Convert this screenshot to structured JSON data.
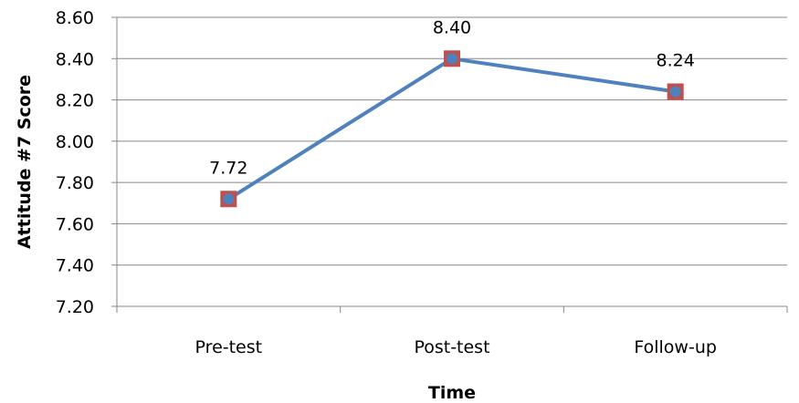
{
  "chart_data": {
    "type": "line",
    "title": "",
    "xlabel": "Time",
    "ylabel": "Attitude #7  Score",
    "categories": [
      "Pre-test",
      "Post-test",
      "Follow-up"
    ],
    "series": [
      {
        "values": [
          7.72,
          8.4,
          8.24
        ],
        "data_labels": [
          "7.72",
          "8.40",
          "8.24"
        ]
      }
    ],
    "ylim": [
      7.2,
      8.6
    ],
    "yticks": [
      "7.20",
      "7.40",
      "7.60",
      "7.80",
      "8.00",
      "8.20",
      "8.40",
      "8.60"
    ],
    "grid": true,
    "legend": "none",
    "colors": {
      "line": "#4f81bd",
      "marker_outer": "#c0504d",
      "marker_inner": "#4f81bd",
      "gridline": "#878787"
    }
  }
}
